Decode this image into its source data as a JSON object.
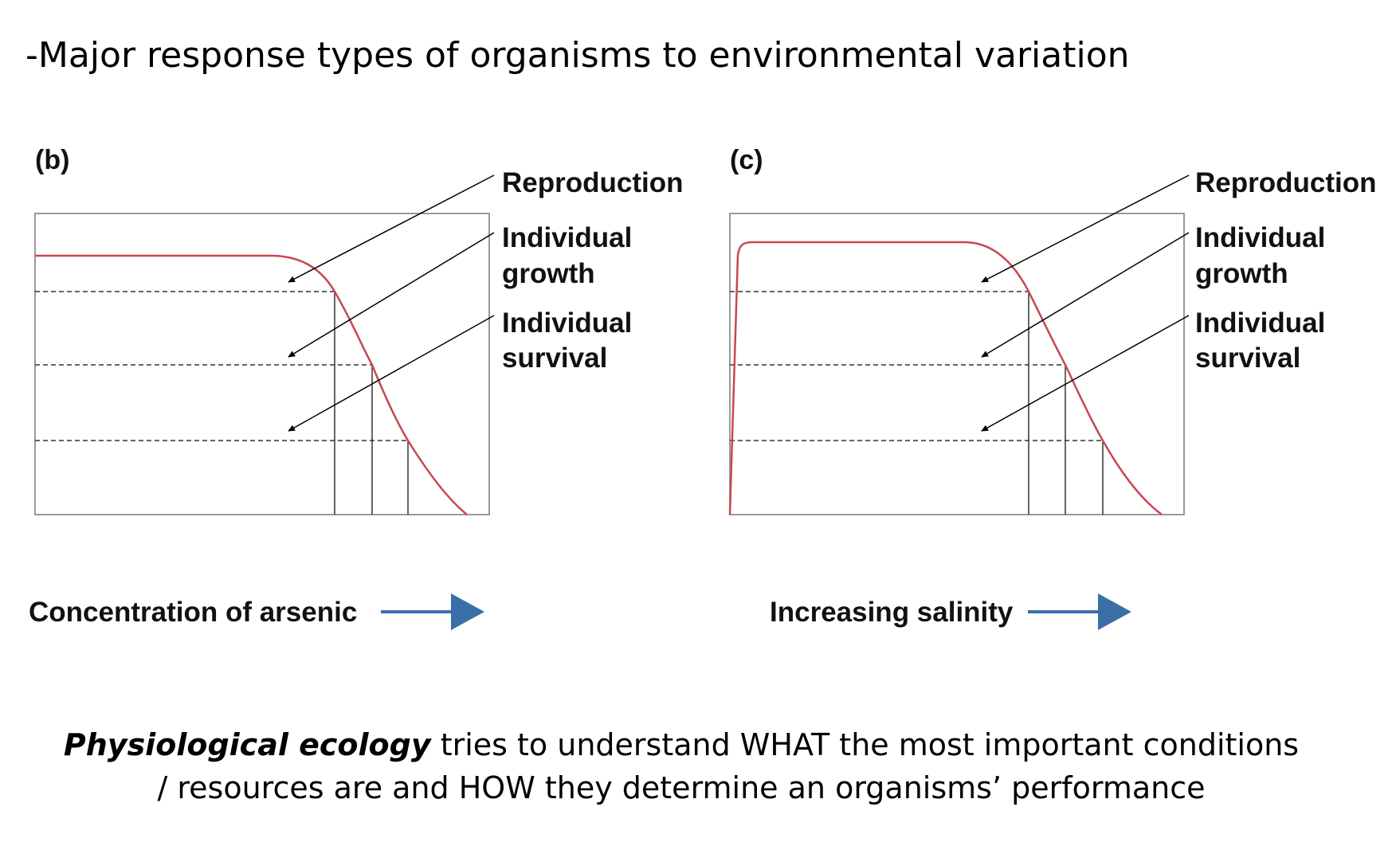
{
  "title": "-Major response types of organisms to environmental variation",
  "panels": [
    {
      "label": "(b)",
      "axis_label": "Concentration of arsenic",
      "curves": [
        "Reproduction",
        "Individual growth",
        "Individual survival"
      ],
      "annot_lines": [
        "Reproduction",
        "Individual",
        "growth",
        "Individual",
        "survival"
      ]
    },
    {
      "label": "(c)",
      "axis_label": "Increasing salinity",
      "curves": [
        "Reproduction",
        "Individual growth",
        "Individual survival"
      ],
      "annot_lines": [
        "Reproduction",
        "Individual",
        "growth",
        "Individual",
        "survival"
      ]
    }
  ],
  "colors": {
    "curve": "#c8474f",
    "arrow": "#3a6fa8",
    "frame": "#9a9a9a"
  },
  "caption": {
    "emph": "Physiological ecology",
    "rest_line1": " tries to understand WHAT the most important conditions",
    "line2": "/ resources are and HOW they determine an organisms’ performance"
  }
}
